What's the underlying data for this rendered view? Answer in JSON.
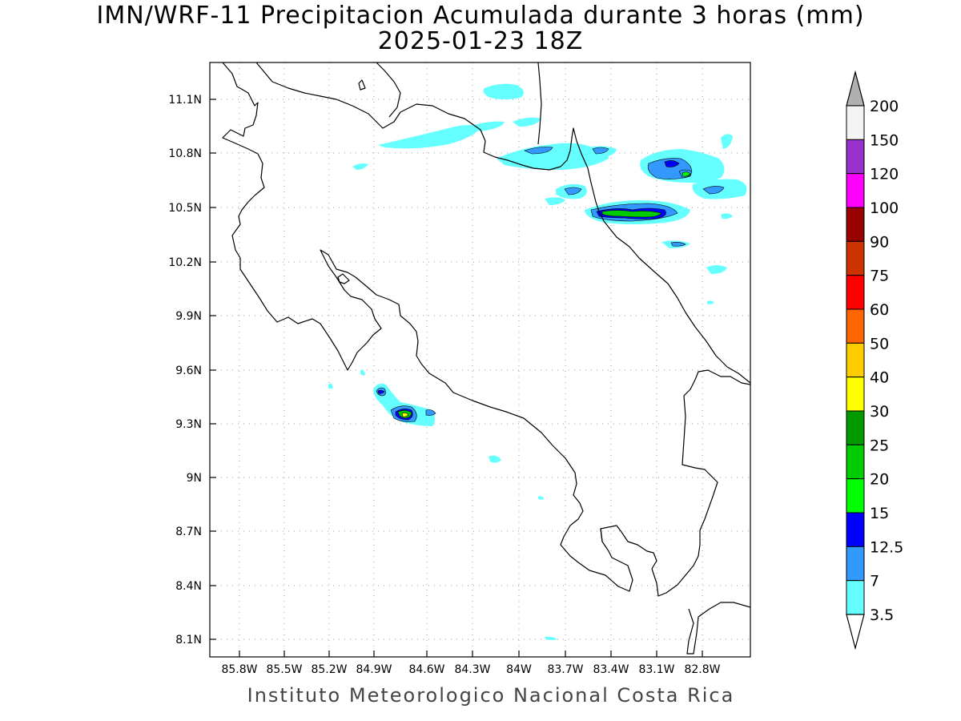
{
  "title": {
    "line1": "IMN/WRF-11 Precipitacion Acumulada durante 3 horas (mm)",
    "line2": "2025-01-23 18Z"
  },
  "footer": "Instituto Meteorologico Nacional Costa Rica",
  "axes": {
    "lon_ticks": [
      "85.8W",
      "85.5W",
      "85.2W",
      "84.9W",
      "84.6W",
      "84.3W",
      "84W",
      "83.7W",
      "83.4W",
      "83.1W",
      "82.8W"
    ],
    "lat_ticks": [
      "11.1N",
      "10.8N",
      "10.5N",
      "10.2N",
      "9.9N",
      "9.6N",
      "9.3N",
      "9N",
      "8.7N",
      "8.4N",
      "8.1N"
    ],
    "grid": "dotted"
  },
  "colorbar": {
    "levels": [
      "200",
      "150",
      "120",
      "100",
      "90",
      "75",
      "60",
      "50",
      "40",
      "30",
      "25",
      "20",
      "15",
      "12.5",
      "7",
      "3.5"
    ],
    "colors": [
      "#f4f4f4",
      "#9932cc",
      "#ff00ff",
      "#990000",
      "#cc3300",
      "#ff0000",
      "#ff6600",
      "#ffcc00",
      "#ffff00",
      "#009900",
      "#00cc00",
      "#00ff00",
      "#0000ff",
      "#3399ff",
      "#66ffff"
    ],
    "top_arrow_color": "#b0b0b0",
    "bottom_arrow_color": "#ffffff"
  },
  "precip_colors": {
    "c35": "#66ffff",
    "c7": "#3399ff",
    "c125": "#0000ff",
    "c15": "#00ff00",
    "c20": "#00cc00",
    "c30": "#ffff00"
  }
}
